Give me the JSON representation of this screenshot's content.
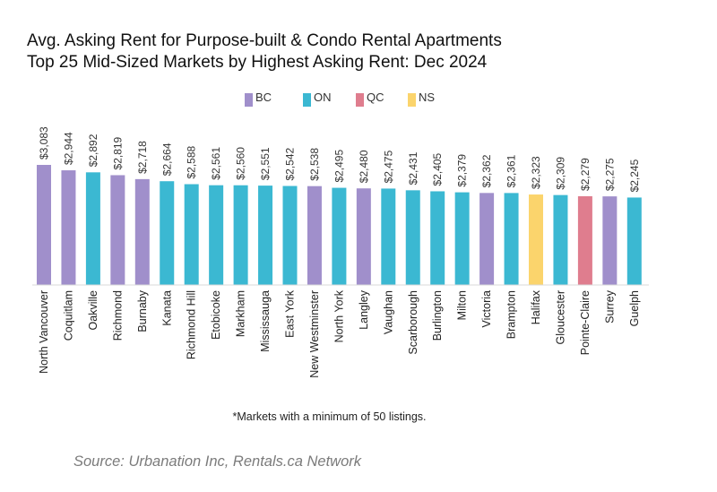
{
  "header": {
    "title_line1": "Avg. Asking Rent for Purpose-built & Condo Rental Apartments",
    "title_line2": "Top 25 Mid-Sized Markets by Highest Asking Rent: Dec 2024"
  },
  "legend": [
    {
      "name": "BC",
      "color": "#a08fcb"
    },
    {
      "name": "ON",
      "color": "#3bb8d2"
    },
    {
      "name": "QC",
      "color": "#df7d8e"
    },
    {
      "name": "NS",
      "color": "#fbd46c"
    }
  ],
  "footnote": "*Markets with a minimum of 50 listings.",
  "source": "Source: Urbanation Inc, Rentals.ca Network",
  "chart_data": {
    "type": "bar",
    "title": "Avg. Asking Rent for Purpose-built & Condo Rental Apartments — Top 25 Mid-Sized Markets by Highest Asking Rent: Dec 2024",
    "xlabel": "",
    "ylabel": "",
    "ylim": [
      0,
      3200
    ],
    "grid": false,
    "legend_position": "top",
    "categories": [
      "North Vancouver",
      "Coquitlam",
      "Oakville",
      "Richmond",
      "Burnaby",
      "Kanata",
      "Richmond Hill",
      "Etobicoke",
      "Markham",
      "Mississauga",
      "East York",
      "New Westminster",
      "North York",
      "Langley",
      "Vaughan",
      "Scarborough",
      "Burlington",
      "Milton",
      "Victoria",
      "Brampton",
      "Halifax",
      "Gloucester",
      "Pointe-Claire",
      "Surrey",
      "Guelph"
    ],
    "values": [
      3083,
      2944,
      2892,
      2819,
      2718,
      2664,
      2588,
      2561,
      2560,
      2551,
      2542,
      2538,
      2495,
      2480,
      2475,
      2431,
      2405,
      2379,
      2362,
      2361,
      2323,
      2309,
      2279,
      2275,
      2245
    ],
    "value_labels": [
      "$3,083",
      "$2,944",
      "$2,892",
      "$2,819",
      "$2,718",
      "$2,664",
      "$2,588",
      "$2,561",
      "$2,560",
      "$2,551",
      "$2,542",
      "$2,538",
      "$2,495",
      "$2,480",
      "$2,475",
      "$2,431",
      "$2,405",
      "$2,379",
      "$2,362",
      "$2,361",
      "$2,323",
      "$2,309",
      "$2,279",
      "$2,275",
      "$2,245"
    ],
    "province": [
      "BC",
      "BC",
      "ON",
      "BC",
      "BC",
      "ON",
      "ON",
      "ON",
      "ON",
      "ON",
      "ON",
      "BC",
      "ON",
      "BC",
      "ON",
      "ON",
      "ON",
      "ON",
      "BC",
      "ON",
      "NS",
      "ON",
      "QC",
      "BC",
      "ON"
    ]
  }
}
